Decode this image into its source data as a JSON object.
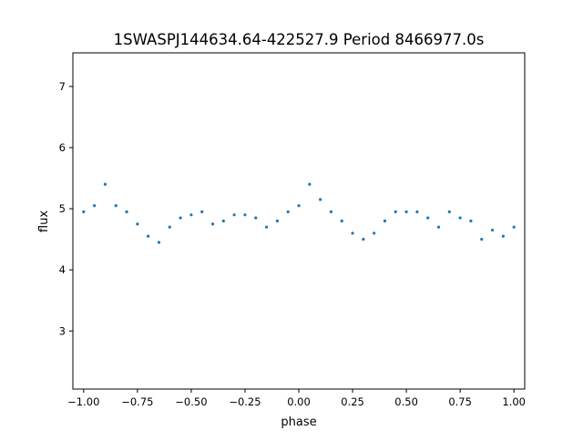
{
  "chart_data": {
    "type": "scatter",
    "title": "1SWASPJ144634.64-422527.9 Period 8466977.0s",
    "xlabel": "phase",
    "ylabel": "flux",
    "xlim": [
      -1.05,
      1.05
    ],
    "ylim": [
      2.05,
      7.55
    ],
    "xticks": [
      -1.0,
      -0.75,
      -0.5,
      -0.25,
      0.0,
      0.25,
      0.5,
      0.75,
      1.0
    ],
    "xtick_labels": [
      "−1.00",
      "−0.75",
      "−0.50",
      "−0.25",
      "0.00",
      "0.25",
      "0.50",
      "0.75",
      "1.00"
    ],
    "yticks": [
      3,
      4,
      5,
      6,
      7
    ],
    "ytick_labels": [
      "3",
      "4",
      "5",
      "6",
      "7"
    ],
    "grid": false,
    "marker_color": "#1f77b4",
    "series": [
      {
        "x": [
          -1.0,
          -0.95,
          -0.9,
          -0.85,
          -0.8,
          -0.75,
          -0.7,
          -0.65,
          -0.6,
          -0.55,
          -0.5,
          -0.45,
          -0.4,
          -0.35,
          -0.3,
          -0.25,
          -0.2,
          -0.15,
          -0.1,
          -0.05,
          0.0,
          0.05,
          0.1,
          0.15,
          0.2,
          0.25,
          0.3,
          0.35,
          0.4,
          0.45,
          0.5,
          0.55,
          0.6,
          0.65,
          0.7,
          0.75,
          0.8,
          0.85,
          0.9,
          0.95,
          1.0
        ],
        "y": [
          4.95,
          5.05,
          5.4,
          5.05,
          4.95,
          4.75,
          4.55,
          4.45,
          4.7,
          4.85,
          4.9,
          4.95,
          4.75,
          4.8,
          4.9,
          4.9,
          4.85,
          4.7,
          4.8,
          4.95,
          5.05,
          5.4,
          5.15,
          4.95,
          4.8,
          4.6,
          4.5,
          4.6,
          4.8,
          4.95,
          4.95,
          4.95,
          4.85,
          4.7,
          4.95,
          4.85,
          4.8,
          4.5,
          4.65,
          4.55,
          4.7
        ]
      }
    ]
  }
}
